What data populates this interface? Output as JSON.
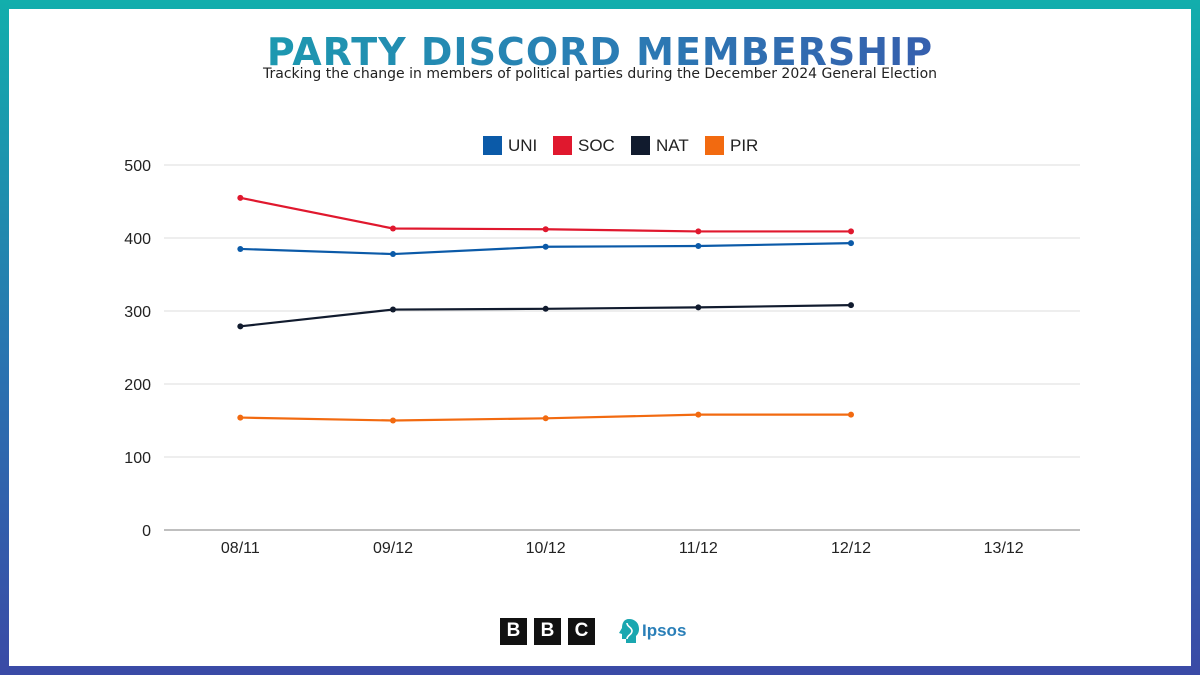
{
  "header": {
    "title": "PARTY DISCORD MEMBERSHIP",
    "subtitle": "Tracking the change in members of political parties during the December 2024 General Election"
  },
  "chart_data": {
    "type": "line",
    "categories": [
      "08/11",
      "09/12",
      "10/12",
      "11/12",
      "12/12",
      "13/12"
    ],
    "ylim": [
      0,
      500
    ],
    "yticks": [
      0,
      100,
      200,
      300,
      400,
      500
    ],
    "grid": true,
    "legend_position": "top-center",
    "series": [
      {
        "name": "UNI",
        "color": "#0b5aa8",
        "values": [
          385,
          378,
          388,
          389,
          393,
          null
        ]
      },
      {
        "name": "SOC",
        "color": "#e0182e",
        "values": [
          455,
          413,
          412,
          409,
          409,
          null
        ]
      },
      {
        "name": "NAT",
        "color": "#111b2e",
        "values": [
          279,
          302,
          303,
          305,
          308,
          null
        ]
      },
      {
        "name": "PIR",
        "color": "#f26a10",
        "values": [
          154,
          150,
          153,
          158,
          158,
          null
        ]
      }
    ]
  },
  "logos": {
    "bbc_letters": [
      "B",
      "B",
      "C"
    ],
    "ipsos_label": "Ipsos"
  }
}
